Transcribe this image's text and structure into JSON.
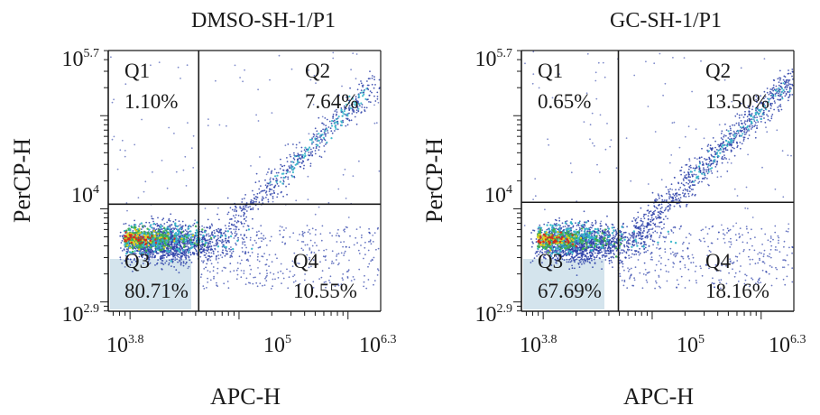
{
  "colors": {
    "ink": "#1a1a1a",
    "dot_blue": "#2b3fa8",
    "dot_cyan": "#35b5c9",
    "dot_green": "#3fae4c",
    "dot_yellow": "#e8d21c",
    "dot_red": "#d42a1e",
    "fill_pale": "#c9dde8"
  },
  "chart_data": [
    {
      "type": "scatter",
      "title": "DMSO-SH-1/P1",
      "xlabel": "APC-H",
      "ylabel": "PerCP-H",
      "x_log_range": [
        3.8,
        6.3
      ],
      "y_log_range": [
        2.9,
        5.7
      ],
      "x_ticks": [
        {
          "exp": 3.8,
          "base": "10",
          "sup": "3.8"
        },
        {
          "exp": 5,
          "base": "10",
          "sup": "5"
        },
        {
          "exp": 6.3,
          "base": "10",
          "sup": "6.3"
        }
      ],
      "y_ticks": [
        {
          "exp": 2.9,
          "base": "10",
          "sup": "2.9"
        },
        {
          "exp": 4,
          "base": "10",
          "sup": "4"
        },
        {
          "exp": 5.7,
          "base": "10",
          "sup": "5.7"
        }
      ],
      "gate": {
        "x_log": 4.63,
        "y_log": 4.05
      },
      "quadrants": [
        {
          "name": "Q1",
          "value": "1.10%"
        },
        {
          "name": "Q2",
          "value": "7.64%"
        },
        {
          "name": "Q3",
          "value": "80.71%"
        },
        {
          "name": "Q4",
          "value": "10.55%"
        }
      ]
    },
    {
      "type": "scatter",
      "title": "GC-SH-1/P1",
      "xlabel": "APC-H",
      "ylabel": "PerCP-H",
      "x_log_range": [
        3.8,
        6.3
      ],
      "y_log_range": [
        2.9,
        5.7
      ],
      "x_ticks": [
        {
          "exp": 3.8,
          "base": "10",
          "sup": "3.8"
        },
        {
          "exp": 5,
          "base": "10",
          "sup": "5"
        },
        {
          "exp": 6.3,
          "base": "10",
          "sup": "6.3"
        }
      ],
      "y_ticks": [
        {
          "exp": 2.9,
          "base": "10",
          "sup": "2.9"
        },
        {
          "exp": 4,
          "base": "10",
          "sup": "4"
        },
        {
          "exp": 5.7,
          "base": "10",
          "sup": "5.7"
        }
      ],
      "gate": {
        "x_log": 4.69,
        "y_log": 4.07
      },
      "quadrants": [
        {
          "name": "Q1",
          "value": "0.65%"
        },
        {
          "name": "Q2",
          "value": "13.50%"
        },
        {
          "name": "Q3",
          "value": "67.69%"
        },
        {
          "name": "Q4",
          "value": "18.16%"
        }
      ]
    }
  ]
}
